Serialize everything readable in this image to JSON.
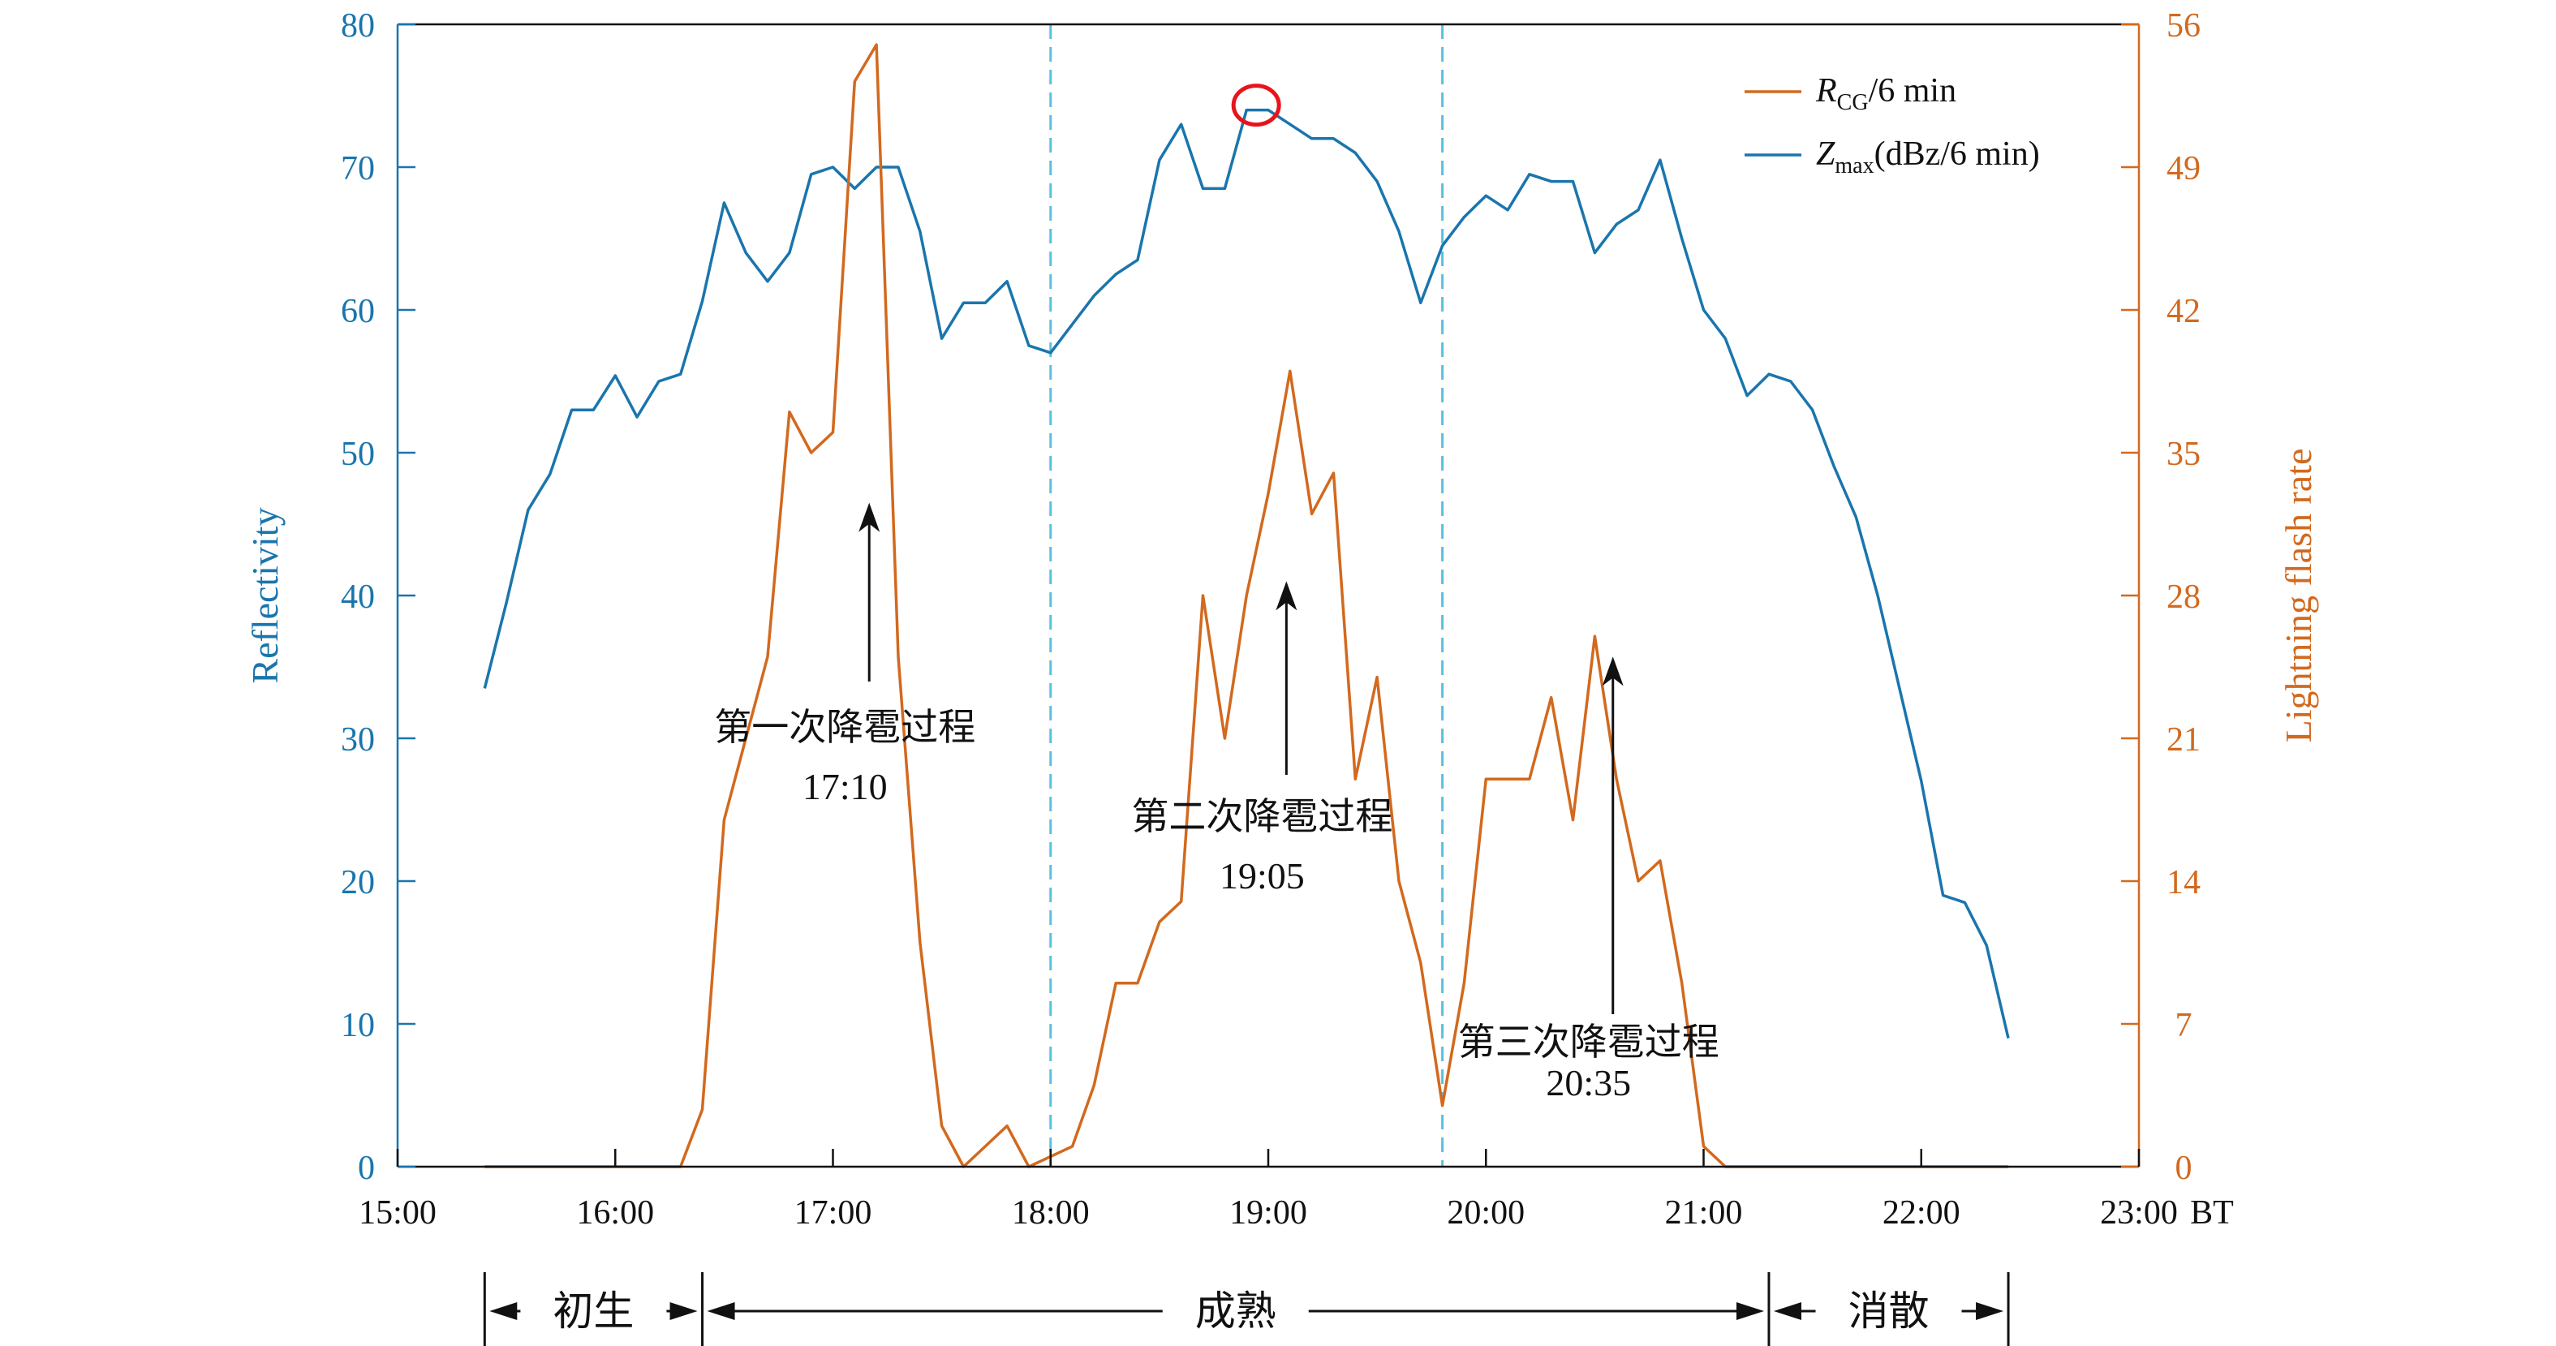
{
  "colors": {
    "reflectivity": "#1a75ad",
    "lightning": "#d2691e",
    "axis": "#111111",
    "stage_line": "#5bc0de",
    "marker": "#e8141d"
  },
  "chart_data": {
    "type": "line",
    "x_unit_label": "BT",
    "x_range_hours": [
      15,
      23
    ],
    "x_tick_labels": [
      "15:00",
      "16:00",
      "17:00",
      "18:00",
      "19:00",
      "20:00",
      "21:00",
      "22:00",
      "23:00"
    ],
    "y_left": {
      "label": "Reflectivity",
      "range": [
        0,
        80
      ],
      "ticks": [
        0,
        10,
        20,
        30,
        40,
        50,
        60,
        70,
        80
      ]
    },
    "y_right": {
      "label": "Lightning flash rate",
      "range": [
        0,
        56
      ],
      "ticks": [
        0,
        7,
        14,
        21,
        28,
        35,
        42,
        49,
        56
      ]
    },
    "legend": {
      "position": "top-right",
      "items": [
        {
          "series": "R_CG",
          "main": "R",
          "sub": "CG",
          "suffix": "/6 min"
        },
        {
          "series": "Z_max",
          "main": "Z",
          "sub": "max",
          "suffix": "(dBz/6 min)"
        }
      ]
    },
    "series": [
      {
        "name": "Z_max",
        "axis": "left",
        "x": [
          "15:24",
          "15:30",
          "15:36",
          "15:42",
          "15:48",
          "15:54",
          "16:00",
          "16:06",
          "16:12",
          "16:18",
          "16:24",
          "16:30",
          "16:36",
          "16:42",
          "16:48",
          "16:54",
          "17:00",
          "17:06",
          "17:12",
          "17:18",
          "17:24",
          "17:30",
          "17:36",
          "17:42",
          "17:48",
          "17:54",
          "18:00",
          "18:06",
          "18:12",
          "18:18",
          "18:24",
          "18:30",
          "18:36",
          "18:42",
          "18:48",
          "18:54",
          "19:00",
          "19:06",
          "19:12",
          "19:18",
          "19:24",
          "19:30",
          "19:36",
          "19:42",
          "19:48",
          "19:54",
          "20:00",
          "20:06",
          "20:12",
          "20:18",
          "20:24",
          "20:30",
          "20:36",
          "20:42",
          "20:48",
          "20:54",
          "21:00",
          "21:06",
          "21:12",
          "21:18",
          "21:24",
          "21:30",
          "21:36",
          "21:42",
          "21:48",
          "21:54",
          "22:00",
          "22:06",
          "22:12",
          "22:18",
          "22:24"
        ],
        "values": [
          33.5,
          39.5,
          46,
          48.5,
          53,
          53,
          55.4,
          52.5,
          55,
          55.5,
          60.6,
          67.5,
          64,
          62,
          64,
          69.5,
          70,
          68.5,
          70,
          70,
          65.5,
          58,
          60.5,
          60.5,
          62,
          57.5,
          57,
          59,
          61,
          62.5,
          63.5,
          70.5,
          73,
          68.5,
          68.5,
          74,
          74,
          73,
          72,
          72,
          71,
          69,
          65.5,
          60.5,
          64.5,
          66.5,
          68,
          67,
          69.5,
          69,
          69,
          64,
          66,
          67,
          70.5,
          65,
          60,
          58,
          54,
          55.5,
          55,
          53,
          49,
          45.5,
          40,
          33.5,
          27,
          19,
          18.5,
          15.5,
          9
        ]
      },
      {
        "name": "R_CG",
        "axis": "right",
        "x": [
          "15:24",
          "15:30",
          "15:36",
          "15:42",
          "15:48",
          "15:54",
          "16:00",
          "16:06",
          "16:12",
          "16:18",
          "16:24",
          "16:30",
          "16:36",
          "16:42",
          "16:48",
          "16:54",
          "17:00",
          "17:06",
          "17:12",
          "17:18",
          "17:24",
          "17:30",
          "17:36",
          "17:42",
          "17:48",
          "17:54",
          "18:00",
          "18:06",
          "18:12",
          "18:18",
          "18:24",
          "18:30",
          "18:36",
          "18:42",
          "18:48",
          "18:54",
          "19:00",
          "19:06",
          "19:12",
          "19:18",
          "19:24",
          "19:30",
          "19:36",
          "19:42",
          "19:48",
          "19:54",
          "20:00",
          "20:06",
          "20:12",
          "20:18",
          "20:24",
          "20:30",
          "20:36",
          "20:42",
          "20:48",
          "20:54",
          "21:00",
          "21:06",
          "21:12",
          "21:18",
          "21:24",
          "21:30",
          "21:36",
          "21:42",
          "21:48",
          "21:54",
          "22:00",
          "22:06",
          "22:12",
          "22:18",
          "22:24"
        ],
        "values": [
          0,
          0,
          0,
          0,
          0,
          0,
          0,
          0,
          0,
          0,
          2.8,
          17,
          21,
          25,
          37,
          35,
          36,
          53.2,
          55,
          25,
          11,
          2,
          0,
          1,
          2,
          0,
          0.5,
          1,
          4,
          9,
          9,
          12,
          13,
          28,
          21,
          28,
          33,
          39,
          32,
          34,
          19,
          24,
          14,
          10,
          3,
          9,
          19,
          19,
          19,
          23,
          17,
          26,
          19,
          14,
          15,
          9,
          1,
          0,
          0,
          0,
          0,
          0,
          0,
          0,
          0,
          0,
          0,
          0,
          0,
          0,
          0
        ]
      }
    ],
    "stage_dividers": [
      "18:00",
      "19:48"
    ],
    "peak_marker": {
      "series": "Z_max",
      "x": "18:54",
      "value": 74
    },
    "annotations": [
      {
        "id": "hail1",
        "text": "第一次降雹过程",
        "time": "17:10",
        "arrow_x": "17:10",
        "arrow_value": 46.5
      },
      {
        "id": "hail2",
        "text": "第二次降雹过程",
        "time": "19:05",
        "arrow_x": "19:05",
        "arrow_value": 41
      },
      {
        "id": "hail3",
        "text": "第三次降雹过程",
        "time": "20:35",
        "arrow_x": "20:35",
        "arrow_value": 25
      }
    ],
    "stages": [
      {
        "label": "初生",
        "start": "15:24",
        "end": "16:24"
      },
      {
        "label": "成熟",
        "start": "16:24",
        "end": "21:18"
      },
      {
        "label": "消散",
        "start": "21:18",
        "end": "22:24"
      }
    ]
  }
}
